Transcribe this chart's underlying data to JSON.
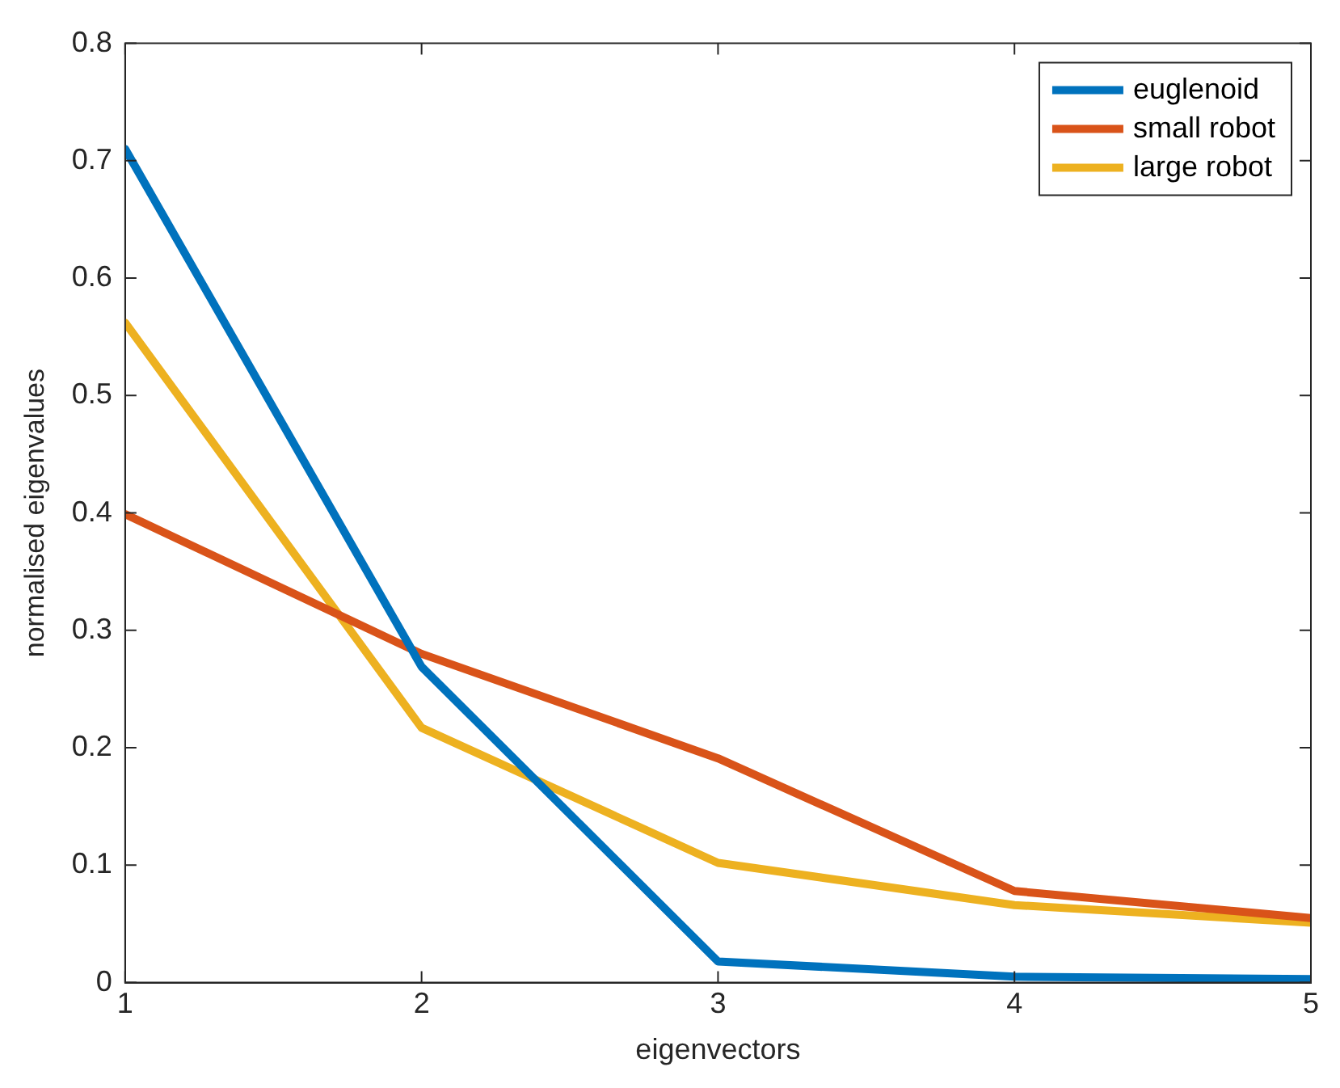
{
  "chart_data": {
    "type": "line",
    "xlabel": "eigenvectors",
    "ylabel": "normalised eigenvalues",
    "x": [
      1,
      2,
      3,
      4,
      5
    ],
    "series": [
      {
        "name": "euglenoid",
        "color": "#0072bd",
        "values": [
          0.71,
          0.269,
          0.018,
          0.005,
          0.003
        ]
      },
      {
        "name": "small robot",
        "color": "#d95319",
        "values": [
          0.399,
          0.28,
          0.191,
          0.078,
          0.055
        ]
      },
      {
        "name": "large robot",
        "color": "#edb120",
        "values": [
          0.562,
          0.217,
          0.102,
          0.066,
          0.051
        ]
      }
    ],
    "xlim": [
      1,
      5
    ],
    "xticks": [
      1,
      2,
      3,
      4,
      5
    ],
    "ylim": [
      0,
      0.8
    ],
    "yticks": [
      0,
      0.1,
      0.2,
      0.3,
      0.4,
      0.5,
      0.6,
      0.7,
      0.8
    ],
    "grid": false,
    "legend": "top right",
    "marker": "none",
    "line_style": "solid"
  }
}
